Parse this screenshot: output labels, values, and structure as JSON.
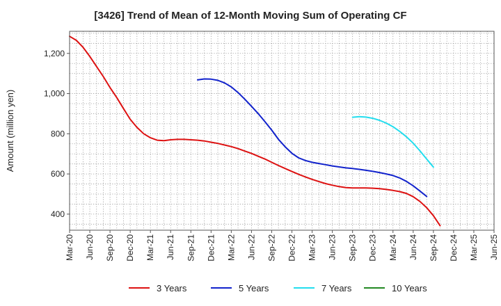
{
  "chart_data": {
    "type": "line",
    "title": "[3426]  Trend of Mean of 12-Month Moving Sum of Operating CF",
    "xlabel": "",
    "ylabel": "Amount (million yen)",
    "ylim": [
      320,
      1310
    ],
    "yticks": [
      400,
      600,
      800,
      1000,
      1200
    ],
    "ytick_labels": [
      "400",
      "600",
      "800",
      "1,000",
      "1,200"
    ],
    "x_categories": [
      "Mar-20",
      "Jun-20",
      "Sep-20",
      "Dec-20",
      "Mar-21",
      "Jun-21",
      "Sep-21",
      "Dec-21",
      "Mar-22",
      "Jun-22",
      "Sep-22",
      "Dec-22",
      "Mar-23",
      "Jun-23",
      "Sep-23",
      "Dec-23",
      "Mar-24",
      "Jun-24",
      "Sep-24",
      "Dec-24",
      "Mar-25",
      "Jun-25"
    ],
    "grid": true,
    "legend_position": "bottom",
    "series": [
      {
        "name": "3 Years",
        "color": "#dd1111",
        "start_index": 0,
        "values": [
          1285,
          1265,
          1230,
          1185,
          1135,
          1085,
          1030,
          980,
          925,
          872,
          832,
          800,
          780,
          768,
          766,
          770,
          772,
          772,
          770,
          768,
          764,
          758,
          752,
          744,
          736,
          726,
          714,
          702,
          688,
          674,
          658,
          642,
          627,
          612,
          598,
          585,
          573,
          562,
          552,
          544,
          537,
          532,
          530,
          530,
          530,
          529,
          527,
          523,
          518,
          512,
          503,
          487,
          463,
          432,
          392,
          342
        ]
      },
      {
        "name": "5 Years",
        "color": "#1122cc",
        "start_index": 19,
        "values": [
          1068,
          1073,
          1072,
          1066,
          1053,
          1033,
          1005,
          972,
          937,
          900,
          860,
          818,
          772,
          735,
          703,
          680,
          667,
          658,
          652,
          646,
          640,
          635,
          630,
          627,
          623,
          618,
          613,
          607,
          600,
          592,
          580,
          563,
          541,
          515,
          488
        ]
      },
      {
        "name": "7 Years",
        "color": "#22ddee",
        "start_index": 42,
        "values": [
          882,
          885,
          883,
          877,
          867,
          853,
          835,
          812,
          785,
          753,
          715,
          674,
          634
        ]
      },
      {
        "name": "10 Years",
        "color": "#228822",
        "start_index": 0,
        "values": []
      }
    ]
  }
}
